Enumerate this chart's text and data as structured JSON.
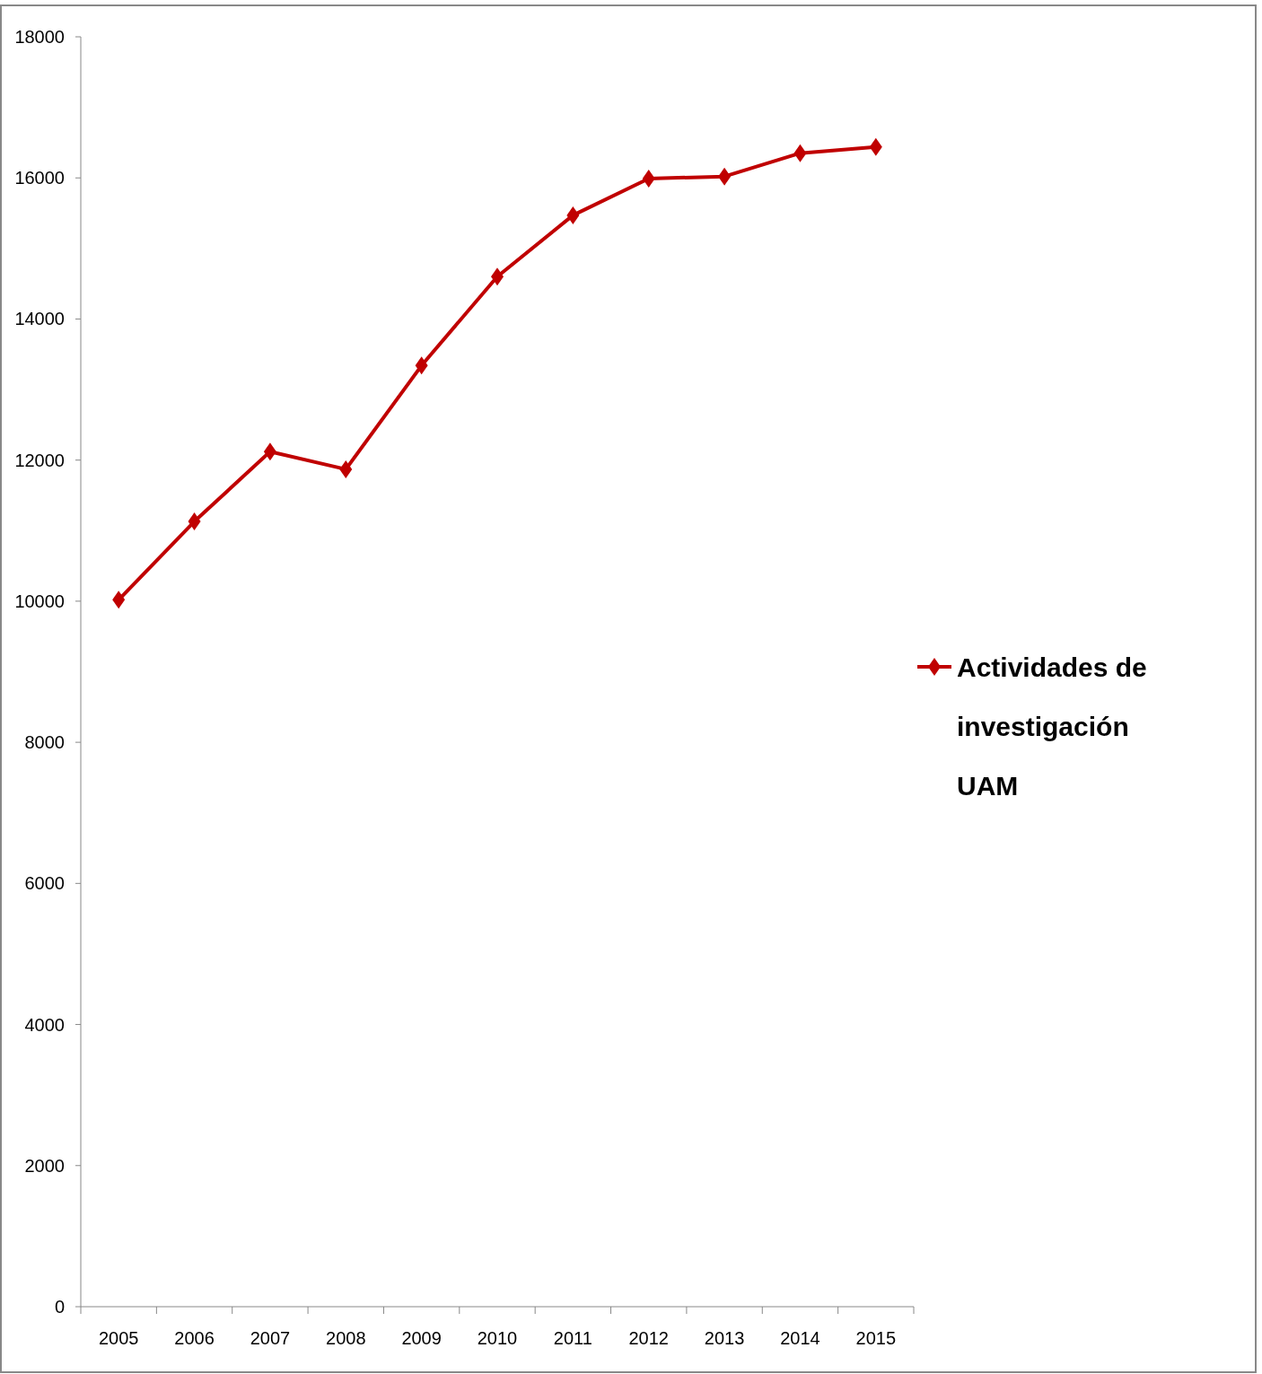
{
  "chart_data": {
    "type": "line",
    "categories": [
      "2005",
      "2006",
      "2007",
      "2008",
      "2009",
      "2010",
      "2011",
      "2012",
      "2013",
      "2014",
      "2015"
    ],
    "series": [
      {
        "name": "Actividades de investigación UAM",
        "color": "#c00000",
        "values": [
          10020,
          11130,
          12120,
          11870,
          13340,
          14600,
          15470,
          15990,
          16020,
          16350,
          16440
        ]
      }
    ],
    "ylim": [
      0,
      18000
    ],
    "yticks": [
      0,
      2000,
      4000,
      6000,
      8000,
      10000,
      12000,
      14000,
      16000,
      18000
    ],
    "grid": false,
    "legend": "right",
    "marker": "diamond",
    "line_style": "solid"
  }
}
